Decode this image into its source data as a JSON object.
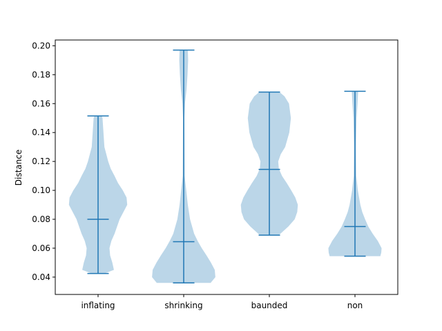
{
  "chart_data": {
    "type": "violin",
    "title": "",
    "xlabel": "",
    "ylabel": "Distance",
    "ylim": [
      0.028,
      0.204
    ],
    "yticks": [
      0.04,
      0.06,
      0.08,
      0.1,
      0.12,
      0.14,
      0.16,
      0.18,
      0.2
    ],
    "ytick_labels": [
      "0.04",
      "0.06",
      "0.08",
      "0.10",
      "0.12",
      "0.14",
      "0.16",
      "0.18",
      "0.20"
    ],
    "categories": [
      "inflating",
      "shrinking",
      "baunded",
      "non"
    ],
    "grid": false,
    "colors": {
      "body": "#1f77b4",
      "line": "#1f77b4",
      "body_opacity": 0.3
    },
    "violins": [
      {
        "name": "inflating",
        "min": 0.0425,
        "max": 0.1515,
        "mean": 0.08,
        "profile": [
          [
            0.0425,
            0.2
          ],
          [
            0.045,
            0.5
          ],
          [
            0.05,
            0.45
          ],
          [
            0.055,
            0.38
          ],
          [
            0.06,
            0.36
          ],
          [
            0.065,
            0.42
          ],
          [
            0.07,
            0.52
          ],
          [
            0.075,
            0.6
          ],
          [
            0.08,
            0.68
          ],
          [
            0.085,
            0.8
          ],
          [
            0.09,
            0.92
          ],
          [
            0.095,
            0.9
          ],
          [
            0.1,
            0.78
          ],
          [
            0.105,
            0.63
          ],
          [
            0.11,
            0.52
          ],
          [
            0.115,
            0.4
          ],
          [
            0.12,
            0.32
          ],
          [
            0.13,
            0.2
          ],
          [
            0.14,
            0.17
          ],
          [
            0.15,
            0.14
          ],
          [
            0.1515,
            0.12
          ]
        ]
      },
      {
        "name": "shrinking",
        "min": 0.036,
        "max": 0.197,
        "mean": 0.0645,
        "profile": [
          [
            0.036,
            0.85
          ],
          [
            0.04,
            1.0
          ],
          [
            0.045,
            0.98
          ],
          [
            0.05,
            0.86
          ],
          [
            0.055,
            0.72
          ],
          [
            0.06,
            0.57
          ],
          [
            0.065,
            0.44
          ],
          [
            0.07,
            0.33
          ],
          [
            0.08,
            0.2
          ],
          [
            0.09,
            0.13
          ],
          [
            0.1,
            0.08
          ],
          [
            0.11,
            0.03
          ],
          [
            0.15,
            0.02
          ],
          [
            0.16,
            0.04
          ],
          [
            0.17,
            0.09
          ],
          [
            0.18,
            0.12
          ],
          [
            0.19,
            0.14
          ],
          [
            0.197,
            0.13
          ]
        ]
      },
      {
        "name": "baunded",
        "min": 0.069,
        "max": 0.168,
        "mean": 0.1145,
        "profile": [
          [
            0.069,
            0.3
          ],
          [
            0.075,
            0.6
          ],
          [
            0.08,
            0.8
          ],
          [
            0.085,
            0.88
          ],
          [
            0.09,
            0.9
          ],
          [
            0.095,
            0.82
          ],
          [
            0.1,
            0.69
          ],
          [
            0.105,
            0.55
          ],
          [
            0.11,
            0.4
          ],
          [
            0.115,
            0.3
          ],
          [
            0.12,
            0.28
          ],
          [
            0.125,
            0.36
          ],
          [
            0.13,
            0.5
          ],
          [
            0.14,
            0.63
          ],
          [
            0.15,
            0.68
          ],
          [
            0.16,
            0.62
          ],
          [
            0.165,
            0.48
          ],
          [
            0.168,
            0.32
          ]
        ]
      },
      {
        "name": "non",
        "min": 0.0545,
        "max": 0.1685,
        "mean": 0.075,
        "profile": [
          [
            0.0545,
            0.8
          ],
          [
            0.057,
            0.83
          ],
          [
            0.06,
            0.84
          ],
          [
            0.065,
            0.72
          ],
          [
            0.07,
            0.56
          ],
          [
            0.075,
            0.42
          ],
          [
            0.08,
            0.32
          ],
          [
            0.085,
            0.23
          ],
          [
            0.09,
            0.17
          ],
          [
            0.1,
            0.09
          ],
          [
            0.11,
            0.04
          ],
          [
            0.13,
            0.03
          ],
          [
            0.15,
            0.05
          ],
          [
            0.16,
            0.08
          ],
          [
            0.1685,
            0.1
          ]
        ]
      }
    ]
  }
}
